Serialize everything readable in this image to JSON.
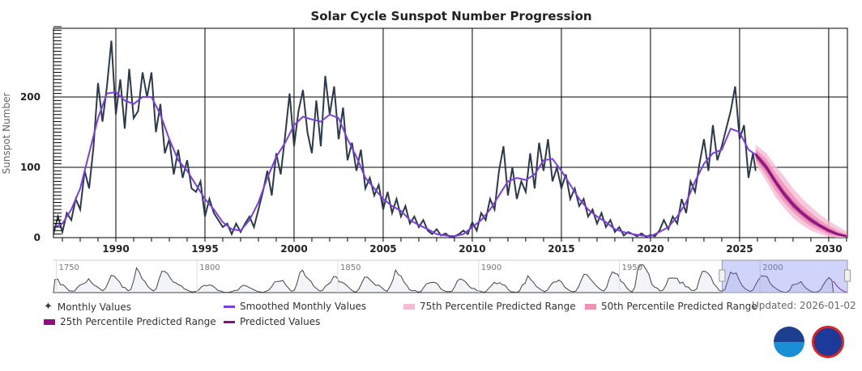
{
  "chart_data": {
    "type": "line",
    "title": "Solar Cycle Sunspot Number Progression",
    "ylabel": "Sunspot Number",
    "xlabel": "",
    "xlim": [
      1986.5,
      2031.05
    ],
    "ylim": [
      0,
      300
    ],
    "x_ticks": [
      "1990",
      "1995",
      "2000",
      "2005",
      "2010",
      "2015",
      "2020",
      "2025",
      "2030"
    ],
    "y_ticks": [
      "0",
      "100",
      "200"
    ],
    "grid": true,
    "legend_placement": "bottom",
    "updated": "Updated: 2026-01-02",
    "colors": {
      "monthly": "#2b3a4a",
      "smoothed": "#7a3fe0",
      "predicted": "#8b0f7e",
      "p25": "#8b0f7e",
      "p50": "#f091b4",
      "p75": "#f5bcd6"
    },
    "series": [
      {
        "name": "Monthly Values",
        "x": [
          1986.5,
          1986.75,
          1987,
          1987.25,
          1987.5,
          1987.75,
          1988,
          1988.25,
          1988.5,
          1988.75,
          1989,
          1989.25,
          1989.5,
          1989.75,
          1990,
          1990.25,
          1990.5,
          1990.75,
          1991,
          1991.25,
          1991.5,
          1991.75,
          1992,
          1992.25,
          1992.5,
          1992.75,
          1993,
          1993.25,
          1993.5,
          1993.75,
          1994,
          1994.25,
          1994.5,
          1994.75,
          1995,
          1995.25,
          1995.5,
          1995.75,
          1996,
          1996.25,
          1996.5,
          1996.75,
          1997,
          1997.25,
          1997.5,
          1997.75,
          1998,
          1998.25,
          1998.5,
          1998.75,
          1999,
          1999.25,
          1999.5,
          1999.75,
          2000,
          2000.25,
          2000.5,
          2000.75,
          2001,
          2001.25,
          2001.5,
          2001.75,
          2002,
          2002.25,
          2002.5,
          2002.75,
          2003,
          2003.25,
          2003.5,
          2003.75,
          2004,
          2004.25,
          2004.5,
          2004.75,
          2005,
          2005.25,
          2005.5,
          2005.75,
          2006,
          2006.25,
          2006.5,
          2006.75,
          2007,
          2007.25,
          2007.5,
          2007.75,
          2008,
          2008.25,
          2008.5,
          2008.75,
          2009,
          2009.25,
          2009.5,
          2009.75,
          2010,
          2010.25,
          2010.5,
          2010.75,
          2011,
          2011.25,
          2011.5,
          2011.75,
          2012,
          2012.25,
          2012.5,
          2012.75,
          2013,
          2013.25,
          2013.5,
          2013.75,
          2014,
          2014.25,
          2014.5,
          2014.75,
          2015,
          2015.25,
          2015.5,
          2015.75,
          2016,
          2016.25,
          2016.5,
          2016.75,
          2017,
          2017.25,
          2017.5,
          2017.75,
          2018,
          2018.25,
          2018.5,
          2018.75,
          2019,
          2019.25,
          2019.5,
          2019.75,
          2020,
          2020.25,
          2020.5,
          2020.75,
          2021,
          2021.25,
          2021.5,
          2021.75,
          2022,
          2022.25,
          2022.5,
          2022.75,
          2023,
          2023.25,
          2023.5,
          2023.75,
          2024,
          2024.25,
          2024.5,
          2024.75,
          2025,
          2025.25,
          2025.5,
          2025.75,
          2025.9
        ],
        "values": [
          5,
          30,
          8,
          35,
          25,
          55,
          40,
          95,
          70,
          130,
          220,
          165,
          215,
          280,
          175,
          225,
          155,
          240,
          170,
          180,
          235,
          200,
          235,
          150,
          190,
          120,
          140,
          90,
          125,
          85,
          110,
          70,
          65,
          80,
          30,
          55,
          35,
          25,
          15,
          20,
          5,
          20,
          8,
          20,
          30,
          15,
          40,
          65,
          95,
          60,
          120,
          90,
          145,
          205,
          130,
          180,
          210,
          150,
          120,
          195,
          130,
          230,
          175,
          215,
          140,
          185,
          110,
          135,
          95,
          125,
          70,
          85,
          60,
          75,
          40,
          65,
          35,
          55,
          30,
          45,
          20,
          30,
          15,
          25,
          10,
          5,
          12,
          3,
          6,
          1,
          2,
          5,
          10,
          5,
          22,
          10,
          35,
          25,
          55,
          40,
          95,
          130,
          60,
          100,
          55,
          80,
          65,
          120,
          70,
          135,
          95,
          140,
          80,
          100,
          70,
          90,
          55,
          70,
          45,
          55,
          30,
          40,
          20,
          35,
          15,
          25,
          8,
          15,
          3,
          8,
          5,
          2,
          6,
          1,
          4,
          2,
          10,
          25,
          12,
          30,
          20,
          55,
          35,
          80,
          65,
          105,
          140,
          95,
          160,
          110,
          130,
          155,
          180,
          215,
          140,
          160,
          85,
          120,
          95
        ]
      },
      {
        "name": "Smoothed Monthly Values",
        "x": [
          1986.5,
          1987,
          1987.5,
          1988,
          1988.5,
          1989,
          1989.5,
          1990,
          1990.5,
          1991,
          1991.5,
          1992,
          1992.5,
          1993,
          1993.5,
          1994,
          1994.5,
          1995,
          1995.5,
          1996,
          1996.5,
          1997,
          1997.5,
          1998,
          1998.5,
          1999,
          1999.5,
          2000,
          2000.5,
          2001,
          2001.5,
          2002,
          2002.5,
          2003,
          2003.5,
          2004,
          2004.5,
          2005,
          2005.5,
          2006,
          2006.5,
          2007,
          2007.5,
          2008,
          2008.5,
          2009,
          2009.5,
          2010,
          2010.5,
          2011,
          2011.5,
          2012,
          2012.5,
          2013,
          2013.5,
          2014,
          2014.5,
          2015,
          2015.5,
          2016,
          2016.5,
          2017,
          2017.5,
          2018,
          2018.5,
          2019,
          2019.5,
          2020,
          2020.5,
          2021,
          2021.5,
          2022,
          2022.5,
          2023,
          2023.5,
          2024,
          2024.5,
          2025,
          2025.5,
          2025.9
        ],
        "values": [
          14,
          20,
          40,
          70,
          120,
          170,
          205,
          207,
          195,
          190,
          200,
          200,
          175,
          140,
          110,
          95,
          75,
          55,
          40,
          22,
          12,
          10,
          25,
          50,
          85,
          115,
          135,
          160,
          172,
          168,
          165,
          175,
          170,
          140,
          115,
          85,
          70,
          55,
          45,
          38,
          25,
          18,
          12,
          5,
          3,
          2,
          5,
          15,
          25,
          40,
          60,
          80,
          85,
          82,
          90,
          110,
          112,
          95,
          75,
          55,
          40,
          30,
          22,
          12,
          8,
          5,
          3,
          2,
          8,
          15,
          30,
          50,
          80,
          105,
          120,
          125,
          155,
          150,
          125,
          118
        ]
      },
      {
        "name": "Predicted Values",
        "x": [
          2025.9,
          2026.5,
          2027,
          2027.5,
          2028,
          2028.5,
          2029,
          2029.5,
          2030,
          2030.5,
          2031
        ],
        "values": [
          118,
          100,
          80,
          62,
          47,
          35,
          25,
          17,
          10,
          5,
          2
        ]
      },
      {
        "name": "25th Percentile Predicted Range",
        "x": [
          2025.9,
          2026.5,
          2027,
          2027.5,
          2028,
          2028.5,
          2029,
          2029.5,
          2030,
          2030.5,
          2031
        ],
        "low": [
          114,
          95,
          75,
          57,
          42,
          31,
          21,
          14,
          7,
          3,
          1
        ],
        "high": [
          122,
          105,
          85,
          67,
          52,
          39,
          29,
          20,
          13,
          7,
          3
        ]
      },
      {
        "name": "50th Percentile Predicted Range",
        "x": [
          2025.9,
          2026.5,
          2027,
          2027.5,
          2028,
          2028.5,
          2029,
          2029.5,
          2030,
          2030.5,
          2031
        ],
        "low": [
          110,
          88,
          67,
          50,
          36,
          25,
          16,
          10,
          4,
          1,
          0
        ],
        "high": [
          126,
          112,
          93,
          76,
          60,
          46,
          35,
          25,
          17,
          10,
          5
        ]
      },
      {
        "name": "75th Percentile Predicted Range",
        "x": [
          2025.9,
          2026.5,
          2027,
          2027.5,
          2028,
          2028.5,
          2029,
          2029.5,
          2030,
          2030.5,
          2031
        ],
        "low": [
          105,
          80,
          58,
          42,
          28,
          18,
          10,
          5,
          1,
          0,
          0
        ],
        "high": [
          132,
          120,
          103,
          87,
          70,
          56,
          44,
          33,
          24,
          16,
          9
        ]
      }
    ],
    "navigator": {
      "x_ticks": [
        "1750",
        "1800",
        "1850",
        "1900",
        "1950",
        "2000"
      ],
      "start_year": 1749,
      "selection": [
        1986.5,
        2031
      ],
      "annual_values": [
        134,
        139,
        80,
        80,
        51,
        20,
        16,
        17,
        54,
        79,
        90,
        104,
        143,
        102,
        75,
        61,
        38,
        19,
        45,
        107,
        178,
        171,
        140,
        109,
        55,
        51,
        19,
        33,
        124,
        255,
        210,
        141,
        113,
        64,
        38,
        17,
        41,
        138,
        220,
        218,
        197,
        149,
        111,
        100,
        79,
        68,
        38,
        27,
        11,
        7,
        11,
        24,
        57,
        75,
        71,
        79,
        70,
        47,
        20,
        17,
        4,
        1,
        5,
        12,
        23,
        24,
        59,
        76,
        69,
        53,
        39,
        25,
        12,
        7,
        2,
        14,
        27,
        60,
        108,
        115,
        118,
        125,
        79,
        46,
        14,
        21,
        94,
        207,
        231,
        169,
        142,
        115,
        63,
        42,
        17,
        21,
        64,
        85,
        108,
        166,
        161,
        110,
        107,
        89,
        66,
        35,
        12,
        7,
        38,
        99,
        158,
        159,
        130,
        102,
        74,
        78,
        53,
        27,
        13,
        61,
        124,
        232,
        186,
        169,
        111,
        74,
        28,
        19,
        21,
        6,
        10,
        53,
        90,
        99,
        106,
        105,
        87,
        42,
        22,
        11,
        10,
        12,
        60,
        123,
        141,
        130,
        107,
        69,
        44,
        44,
        20,
        16,
        4,
        8,
        41,
        70,
        105,
        91,
        103,
        81,
        73,
        31,
        9,
        6,
        2,
        16,
        79,
        95,
        174,
        135,
        106,
        63,
        43,
        24,
        10,
        28,
        74,
        107,
        110,
        129,
        108,
        60,
        36,
        18,
        9,
        15,
        60,
        132,
        190,
        183,
        148,
        113,
        79,
        51,
        27,
        16,
        56,
        152,
        214,
        199,
        186,
        118,
        99,
        53,
        23,
        7,
        55,
        237,
        286,
        285,
        238,
        189,
        88,
        57,
        45,
        16,
        25,
        73,
        148,
        150,
        149,
        148,
        95,
        108,
        60,
        57,
        25,
        20,
        40,
        145,
        220,
        219,
        198,
        162,
        91,
        61,
        21,
        14,
        34,
        123,
        211,
        192,
        203,
        133,
        76,
        45,
        25,
        12,
        29,
        88,
        136,
        174,
        170,
        164,
        99,
        65,
        46,
        25,
        13,
        4,
        5,
        25,
        81,
        85,
        94,
        113,
        70,
        40,
        22,
        7,
        4,
        9,
        29,
        83,
        126,
        155,
        125
      ]
    }
  },
  "logos": {
    "noaa": "NOAA",
    "nws": "NATIONAL WEATHER SERVICE"
  }
}
